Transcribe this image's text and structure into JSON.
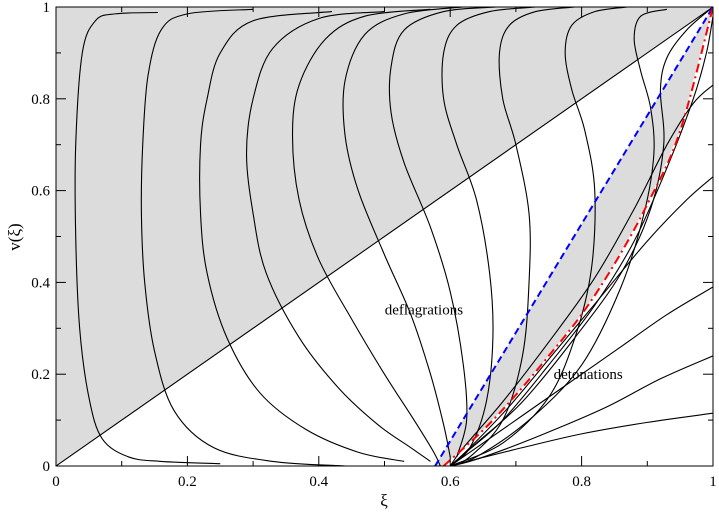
{
  "chart_data": {
    "type": "line",
    "title": "",
    "xlabel": "ξ",
    "ylabel": "v(ξ)",
    "xlim": [
      0,
      1
    ],
    "ylim": [
      0,
      1
    ],
    "grid": false,
    "x_ticks": [
      {
        "value": 0,
        "label": "0"
      },
      {
        "value": 0.2,
        "label": "0.2"
      },
      {
        "value": 0.4,
        "label": "0.4"
      },
      {
        "value": 0.6,
        "label": "0.6"
      },
      {
        "value": 0.8,
        "label": "0.8"
      },
      {
        "value": 1,
        "label": "1"
      }
    ],
    "y_ticks": [
      {
        "value": 0,
        "label": "0"
      },
      {
        "value": 0.2,
        "label": "0.2"
      },
      {
        "value": 0.4,
        "label": "0.4"
      },
      {
        "value": 0.6,
        "label": "0.6"
      },
      {
        "value": 0.8,
        "label": "0.8"
      },
      {
        "value": 1,
        "label": "1"
      }
    ],
    "annotations": [
      {
        "text": "deflagrations",
        "x": 0.56,
        "y": 0.33
      },
      {
        "text": "detonations",
        "x": 0.81,
        "y": 0.19
      }
    ],
    "shaded_color": "#dcdcdc",
    "reference_lines": {
      "diagonal": {
        "color": "#000000",
        "points": [
          [
            0,
            0
          ],
          [
            1,
            1
          ]
        ]
      },
      "blue_dashed": {
        "color": "#0000ff",
        "style": "dashed",
        "points": [
          [
            0.577,
            0
          ],
          [
            1,
            1
          ]
        ]
      },
      "red_dashdot": {
        "color": "#ff0000",
        "style": "dash-dot",
        "points": [
          [
            0.59,
            0
          ],
          [
            0.65,
            0.078
          ],
          [
            0.7,
            0.155
          ],
          [
            0.75,
            0.24
          ],
          [
            0.8,
            0.33
          ],
          [
            0.85,
            0.44
          ],
          [
            0.9,
            0.57
          ],
          [
            0.95,
            0.73
          ],
          [
            1.0,
            1.0
          ]
        ]
      }
    },
    "series": [
      {
        "values": [
          [
            0.155,
            0.988
          ],
          [
            0.09,
            0.985
          ],
          [
            0.06,
            0.97
          ],
          [
            0.04,
            0.9
          ],
          [
            0.03,
            0.7
          ],
          [
            0.03,
            0.5
          ],
          [
            0.036,
            0.3
          ],
          [
            0.05,
            0.15
          ],
          [
            0.07,
            0.06
          ],
          [
            0.11,
            0.02
          ],
          [
            0.16,
            0.01
          ],
          [
            0.25,
            0.005
          ]
        ]
      },
      {
        "values": [
          [
            0.3,
            0.995
          ],
          [
            0.2,
            0.985
          ],
          [
            0.16,
            0.95
          ],
          [
            0.14,
            0.85
          ],
          [
            0.132,
            0.7
          ],
          [
            0.13,
            0.55
          ],
          [
            0.135,
            0.4
          ],
          [
            0.15,
            0.25
          ],
          [
            0.18,
            0.12
          ],
          [
            0.24,
            0.04
          ],
          [
            0.33,
            0.01
          ],
          [
            0.44,
            0.0
          ]
        ]
      },
      {
        "values": [
          [
            0.42,
            0.99
          ],
          [
            0.3,
            0.97
          ],
          [
            0.25,
            0.9
          ],
          [
            0.23,
            0.8
          ],
          [
            0.22,
            0.7
          ],
          [
            0.22,
            0.55
          ],
          [
            0.23,
            0.42
          ],
          [
            0.26,
            0.28
          ],
          [
            0.31,
            0.16
          ],
          [
            0.38,
            0.08
          ],
          [
            0.46,
            0.03
          ],
          [
            0.53,
            0.01
          ]
        ]
      },
      {
        "values": [
          [
            0.5,
            0.99
          ],
          [
            0.4,
            0.975
          ],
          [
            0.33,
            0.91
          ],
          [
            0.3,
            0.8
          ],
          [
            0.29,
            0.68
          ],
          [
            0.3,
            0.55
          ],
          [
            0.32,
            0.42
          ],
          [
            0.37,
            0.28
          ],
          [
            0.43,
            0.17
          ],
          [
            0.49,
            0.09
          ],
          [
            0.54,
            0.04
          ],
          [
            0.57,
            0.01
          ]
        ]
      },
      {
        "values": [
          [
            0.57,
            0.995
          ],
          [
            0.47,
            0.98
          ],
          [
            0.41,
            0.93
          ],
          [
            0.37,
            0.83
          ],
          [
            0.36,
            0.72
          ],
          [
            0.37,
            0.58
          ],
          [
            0.4,
            0.45
          ],
          [
            0.45,
            0.32
          ],
          [
            0.5,
            0.2
          ],
          [
            0.545,
            0.1
          ],
          [
            0.575,
            0.03
          ],
          [
            0.585,
            0.0
          ]
        ]
      },
      {
        "values": [
          [
            0.62,
            1.0
          ],
          [
            0.53,
            0.985
          ],
          [
            0.47,
            0.94
          ],
          [
            0.44,
            0.84
          ],
          [
            0.44,
            0.72
          ],
          [
            0.46,
            0.6
          ],
          [
            0.5,
            0.46
          ],
          [
            0.54,
            0.33
          ],
          [
            0.57,
            0.2
          ],
          [
            0.59,
            0.09
          ],
          [
            0.6,
            0.02
          ]
        ]
      },
      {
        "values": [
          [
            0.67,
            1.0
          ],
          [
            0.59,
            0.99
          ],
          [
            0.53,
            0.95
          ],
          [
            0.51,
            0.87
          ],
          [
            0.51,
            0.77
          ],
          [
            0.53,
            0.66
          ],
          [
            0.57,
            0.52
          ],
          [
            0.6,
            0.38
          ],
          [
            0.62,
            0.22
          ],
          [
            0.625,
            0.1
          ],
          [
            0.61,
            0.02
          ]
        ]
      },
      {
        "values": [
          [
            0.73,
            1.0
          ],
          [
            0.66,
            0.99
          ],
          [
            0.61,
            0.96
          ],
          [
            0.59,
            0.9
          ],
          [
            0.59,
            0.8
          ],
          [
            0.61,
            0.7
          ],
          [
            0.64,
            0.58
          ],
          [
            0.66,
            0.42
          ],
          [
            0.665,
            0.28
          ],
          [
            0.655,
            0.14
          ],
          [
            0.63,
            0.04
          ],
          [
            0.6,
            0.0
          ]
        ]
      },
      {
        "values": [
          [
            0.79,
            1.0
          ],
          [
            0.73,
            0.99
          ],
          [
            0.69,
            0.96
          ],
          [
            0.675,
            0.9
          ],
          [
            0.68,
            0.8
          ],
          [
            0.7,
            0.7
          ],
          [
            0.72,
            0.55
          ],
          [
            0.72,
            0.4
          ],
          [
            0.71,
            0.24
          ],
          [
            0.68,
            0.1
          ],
          [
            0.63,
            0.02
          ],
          [
            0.6,
            0.0
          ]
        ]
      },
      {
        "values": [
          [
            0.87,
            1.0
          ],
          [
            0.82,
            0.99
          ],
          [
            0.785,
            0.96
          ],
          [
            0.775,
            0.9
          ],
          [
            0.785,
            0.82
          ],
          [
            0.805,
            0.73
          ],
          [
            0.82,
            0.6
          ],
          [
            0.815,
            0.43
          ],
          [
            0.79,
            0.28
          ],
          [
            0.75,
            0.15
          ],
          [
            0.68,
            0.05
          ],
          [
            0.6,
            0.0
          ]
        ]
      },
      {
        "values": [
          [
            0.93,
            0.995
          ],
          [
            0.89,
            0.98
          ],
          [
            0.88,
            0.93
          ],
          [
            0.89,
            0.86
          ],
          [
            0.905,
            0.78
          ],
          [
            0.91,
            0.68
          ],
          [
            0.895,
            0.55
          ],
          [
            0.86,
            0.39
          ],
          [
            0.8,
            0.22
          ],
          [
            0.72,
            0.1
          ],
          [
            0.64,
            0.02
          ],
          [
            0.6,
            0.0
          ]
        ]
      },
      {
        "values": [
          [
            1.0,
            1.0
          ],
          [
            0.96,
            0.95
          ],
          [
            0.93,
            0.89
          ],
          [
            0.92,
            0.82
          ],
          [
            0.925,
            0.7
          ],
          [
            0.905,
            0.56
          ],
          [
            0.86,
            0.42
          ],
          [
            0.79,
            0.28
          ],
          [
            0.71,
            0.14
          ],
          [
            0.64,
            0.05
          ],
          [
            0.6,
            0.0
          ]
        ]
      },
      {
        "values": [
          [
            1.0,
            0.98
          ],
          [
            0.99,
            0.9
          ],
          [
            0.97,
            0.8
          ],
          [
            0.93,
            0.65
          ],
          [
            0.88,
            0.49
          ],
          [
            0.82,
            0.35
          ],
          [
            0.75,
            0.22
          ],
          [
            0.68,
            0.1
          ],
          [
            0.62,
            0.025
          ],
          [
            0.6,
            0.0
          ]
        ]
      },
      {
        "values": [
          [
            1.0,
            0.83
          ],
          [
            0.97,
            0.79
          ],
          [
            0.93,
            0.7
          ],
          [
            0.88,
            0.56
          ],
          [
            0.82,
            0.41
          ],
          [
            0.75,
            0.27
          ],
          [
            0.68,
            0.14
          ],
          [
            0.62,
            0.04
          ],
          [
            0.6,
            0.0
          ]
        ]
      },
      {
        "values": [
          [
            1.0,
            0.63
          ],
          [
            0.96,
            0.58
          ],
          [
            0.9,
            0.49
          ],
          [
            0.83,
            0.37
          ],
          [
            0.76,
            0.25
          ],
          [
            0.69,
            0.13
          ],
          [
            0.63,
            0.04
          ],
          [
            0.6,
            0.0
          ]
        ]
      },
      {
        "values": [
          [
            1.0,
            0.39
          ],
          [
            0.93,
            0.33
          ],
          [
            0.86,
            0.26
          ],
          [
            0.78,
            0.18
          ],
          [
            0.71,
            0.11
          ],
          [
            0.65,
            0.05
          ],
          [
            0.61,
            0.01
          ],
          [
            0.6,
            0.0
          ]
        ]
      },
      {
        "values": [
          [
            1.0,
            0.24
          ],
          [
            0.92,
            0.19
          ],
          [
            0.84,
            0.13
          ],
          [
            0.76,
            0.08
          ],
          [
            0.69,
            0.04
          ],
          [
            0.63,
            0.01
          ],
          [
            0.6,
            0.0
          ]
        ]
      },
      {
        "values": [
          [
            1.0,
            0.115
          ],
          [
            0.9,
            0.095
          ],
          [
            0.8,
            0.07
          ],
          [
            0.71,
            0.04
          ],
          [
            0.64,
            0.015
          ],
          [
            0.6,
            0.0
          ]
        ]
      }
    ]
  }
}
